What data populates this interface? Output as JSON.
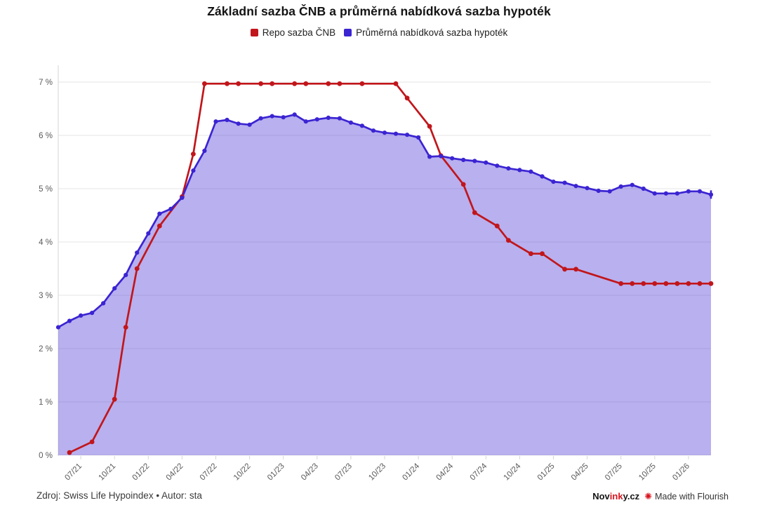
{
  "title": "Základní sazba ČNB a průměrná nabídková sazba hypoték",
  "legend": [
    {
      "label": "Repo sazba ČNB",
      "color": "#c1161b"
    },
    {
      "label": "Průměrná nabídková sazba hypoték",
      "color": "#3b24d2"
    }
  ],
  "footer": {
    "source": "Zdroj: Swiss Life Hypoindex • Autor: sta",
    "brand_prefix": "Nov",
    "brand_highlight": "ink",
    "brand_suffix": "y.cz",
    "flourish_credit": "Made with Flourish"
  },
  "colors": {
    "red_series": "#c1161b",
    "blue_series": "#3b24d2",
    "area_fill": "rgba(59,36,210,0.36)",
    "gridline": "#e4e4e6",
    "axis_line": "#d6d6d8",
    "tick_text": "#5a5a5a"
  },
  "chart_data": {
    "type": "line",
    "title": "Základní sazba ČNB a průměrná nabídková sazba hypoték",
    "xlabel": "",
    "ylabel": "",
    "ylim": [
      0,
      7
    ],
    "grid": true,
    "legend_position": "top",
    "x": [
      "05/21",
      "06/21",
      "07/21",
      "08/21",
      "09/21",
      "10/21",
      "11/21",
      "12/21",
      "01/22",
      "02/22",
      "03/22",
      "04/22",
      "05/22",
      "06/22",
      "07/22",
      "08/22",
      "09/22",
      "10/22",
      "11/22",
      "12/22",
      "01/23",
      "02/23",
      "03/23",
      "04/23",
      "05/23",
      "06/23",
      "07/23",
      "08/23",
      "09/23",
      "10/23",
      "11/23",
      "12/23",
      "01/24",
      "02/24",
      "03/24",
      "04/24",
      "05/24",
      "06/24",
      "07/24",
      "08/24",
      "09/24",
      "10/24",
      "11/24",
      "12/24",
      "01/25",
      "02/25",
      "03/25",
      "04/25",
      "05/25",
      "06/25",
      "07/25",
      "08/25",
      "09/25",
      "10/25",
      "11/25",
      "12/25",
      "01/26",
      "02/26",
      "03/26"
    ],
    "y_ticks": [
      {
        "value": 0,
        "label": "0 %"
      },
      {
        "value": 1,
        "label": "1 %"
      },
      {
        "value": 2,
        "label": "2 %"
      },
      {
        "value": 3,
        "label": "3 %"
      },
      {
        "value": 4,
        "label": "4 %"
      },
      {
        "value": 5,
        "label": "5 %"
      },
      {
        "value": 6,
        "label": "6 %"
      },
      {
        "value": 7,
        "label": "7 %"
      }
    ],
    "x_ticks": [
      {
        "index": 2,
        "label": "07/21"
      },
      {
        "index": 5,
        "label": "10/21"
      },
      {
        "index": 8,
        "label": "01/22"
      },
      {
        "index": 11,
        "label": "04/22"
      },
      {
        "index": 14,
        "label": "07/22"
      },
      {
        "index": 17,
        "label": "10/22"
      },
      {
        "index": 20,
        "label": "01/23"
      },
      {
        "index": 23,
        "label": "04/23"
      },
      {
        "index": 26,
        "label": "07/23"
      },
      {
        "index": 29,
        "label": "10/23"
      },
      {
        "index": 32,
        "label": "01/24"
      },
      {
        "index": 35,
        "label": "04/24"
      },
      {
        "index": 38,
        "label": "07/24"
      },
      {
        "index": 41,
        "label": "10/24"
      },
      {
        "index": 44,
        "label": "01/25"
      },
      {
        "index": 47,
        "label": "04/25"
      },
      {
        "index": 50,
        "label": "07/25"
      },
      {
        "index": 53,
        "label": "10/25"
      },
      {
        "index": 56,
        "label": "01/26"
      }
    ],
    "series": [
      {
        "name": "Repo sazba ČNB",
        "color": "#c1161b",
        "values": [
          null,
          0.05,
          null,
          0.25,
          null,
          1.05,
          2.4,
          3.5,
          null,
          4.3,
          null,
          4.85,
          5.65,
          6.97,
          null,
          6.97,
          6.97,
          null,
          6.97,
          6.97,
          null,
          6.97,
          6.97,
          null,
          6.97,
          6.97,
          null,
          6.97,
          null,
          null,
          6.97,
          6.7,
          null,
          6.17,
          5.62,
          null,
          5.08,
          4.55,
          null,
          4.3,
          4.03,
          null,
          3.78,
          3.78,
          null,
          3.49,
          3.49,
          null,
          null,
          null,
          3.22,
          3.22,
          3.22,
          3.22,
          3.22,
          3.22,
          3.22,
          3.22,
          3.22
        ]
      },
      {
        "name": "Průměrná nabídková sazba hypoték",
        "color": "#3b24d2",
        "area": true,
        "values": [
          2.4,
          2.52,
          2.62,
          2.67,
          2.85,
          3.13,
          3.38,
          3.8,
          4.16,
          4.53,
          4.62,
          4.83,
          5.34,
          5.71,
          6.26,
          6.29,
          6.22,
          6.2,
          6.32,
          6.36,
          6.34,
          6.39,
          6.26,
          6.3,
          6.33,
          6.32,
          6.24,
          6.18,
          6.09,
          6.05,
          6.03,
          6.01,
          5.96,
          5.6,
          5.61,
          5.57,
          5.54,
          5.52,
          5.49,
          5.43,
          5.38,
          5.35,
          5.32,
          5.23,
          5.13,
          5.11,
          5.05,
          5.01,
          4.96,
          4.95,
          5.04,
          5.07,
          5.0,
          4.91,
          4.91,
          4.91,
          4.95,
          4.95,
          4.89
        ]
      }
    ]
  }
}
